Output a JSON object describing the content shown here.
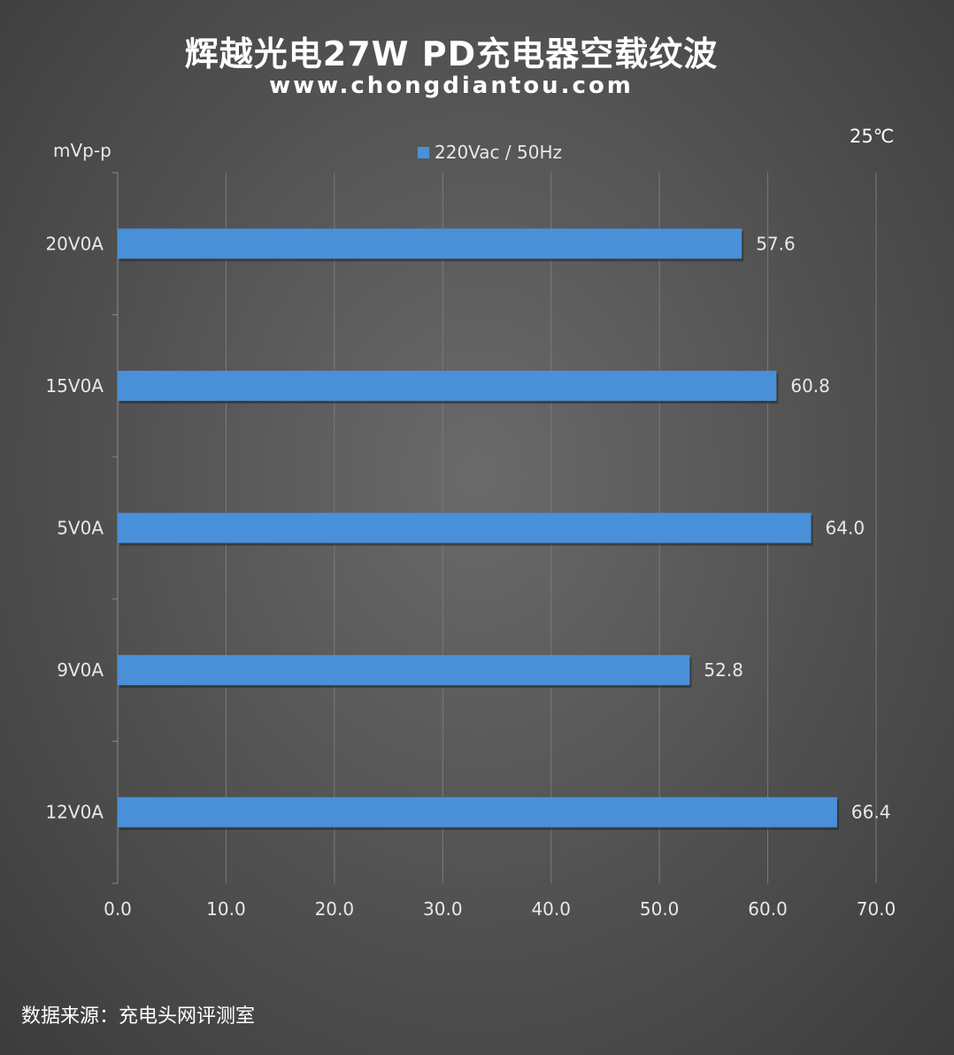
{
  "chart_data": {
    "type": "bar",
    "orientation": "horizontal",
    "title": "辉越光电27W PD充电器空载纹波",
    "subtitle": "www.chongdiantou.com",
    "ylabel": "mVp-p",
    "temperature": "25℃",
    "categories": [
      "20V0A",
      "15V0A",
      "5V0A",
      "9V0A",
      "12V0A"
    ],
    "series": [
      {
        "name": "220Vac / 50Hz",
        "values": [
          57.6,
          60.8,
          64.0,
          52.8,
          66.4
        ],
        "labels": [
          "57.6",
          "60.8",
          "64.0",
          "52.8",
          "66.4"
        ]
      }
    ],
    "xlim": [
      0,
      70
    ],
    "xticks": [
      "0.0",
      "10.0",
      "20.0",
      "30.0",
      "40.0",
      "50.0",
      "60.0",
      "70.0"
    ],
    "grid": true,
    "legend_position": "top-center",
    "bar_color": "#4a90d9"
  },
  "footer": {
    "source": "数据来源：充电头网评测室"
  }
}
